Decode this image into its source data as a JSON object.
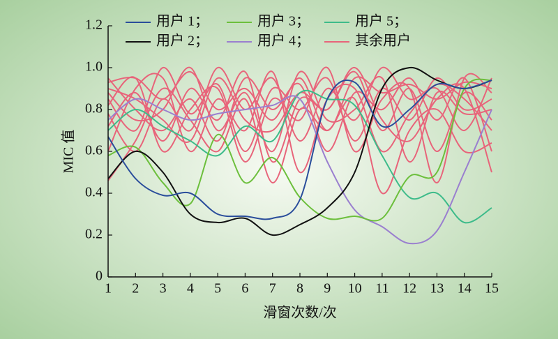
{
  "chart_data": {
    "type": "line",
    "xlabel": "滑窗次数/次",
    "ylabel": "MIC 值",
    "x": [
      1,
      2,
      3,
      4,
      5,
      6,
      7,
      8,
      9,
      10,
      11,
      12,
      13,
      14,
      15
    ],
    "xlim": [
      1,
      15
    ],
    "xticks": [
      1,
      2,
      3,
      4,
      5,
      6,
      7,
      8,
      9,
      10,
      11,
      12,
      13,
      14,
      15
    ],
    "ylim": [
      0,
      1.2
    ],
    "yticks": [
      0,
      0.2,
      0.4,
      0.6,
      0.8,
      {
        "value": 1,
        "label": "1.0"
      },
      1.2
    ],
    "series": [
      {
        "name": "用户 1；",
        "color": "#2a4d9b",
        "values": [
          0.67,
          0.47,
          0.39,
          0.4,
          0.3,
          0.29,
          0.28,
          0.37,
          0.85,
          0.93,
          0.72,
          0.8,
          0.92,
          0.9,
          0.94
        ]
      },
      {
        "name": "用户 2；",
        "color": "#111111",
        "values": [
          0.47,
          0.6,
          0.5,
          0.3,
          0.26,
          0.28,
          0.2,
          0.25,
          0.33,
          0.5,
          0.9,
          1.0,
          0.94,
          0.9,
          0.94
        ]
      },
      {
        "name": "用户 3；",
        "color": "#6cbf3c",
        "values": [
          0.58,
          0.62,
          0.45,
          0.35,
          0.68,
          0.45,
          0.57,
          0.38,
          0.28,
          0.29,
          0.28,
          0.48,
          0.5,
          0.9,
          0.94
        ]
      },
      {
        "name": "用户 4；",
        "color": "#9a7fcf",
        "values": [
          0.75,
          0.85,
          0.8,
          0.75,
          0.78,
          0.8,
          0.82,
          0.85,
          0.55,
          0.32,
          0.24,
          0.16,
          0.22,
          0.5,
          0.8
        ]
      },
      {
        "name": "用户 5；",
        "color": "#3dbb8a",
        "values": [
          0.7,
          0.8,
          0.72,
          0.65,
          0.58,
          0.72,
          0.65,
          0.88,
          0.85,
          0.82,
          0.58,
          0.38,
          0.4,
          0.26,
          0.33
        ]
      },
      {
        "name": "其余用户",
        "color": "#e8647a",
        "values": [
          [
            0.93,
            0.95,
            0.85,
            0.98,
            0.8,
            0.9,
            0.75,
            0.95,
            0.7,
            0.95,
            0.88,
            0.92,
            0.85,
            0.93,
            0.9
          ],
          [
            0.85,
            0.7,
            1.0,
            0.78,
            0.92,
            0.6,
            0.9,
            0.8,
            0.95,
            0.65,
            0.9,
            0.75,
            0.95,
            0.8,
            0.85
          ],
          [
            0.72,
            0.88,
            0.65,
            0.9,
            0.75,
            0.98,
            0.55,
            0.85,
            0.8,
            0.98,
            0.7,
            0.9,
            0.6,
            0.88,
            0.75
          ],
          [
            0.78,
            0.6,
            0.85,
            0.7,
            1.0,
            0.8,
            0.95,
            0.65,
            0.9,
            0.75,
            1.0,
            0.85,
            0.9,
            0.7,
            0.95
          ],
          [
            0.95,
            0.8,
            0.7,
            0.85,
            0.65,
            0.95,
            0.8,
            0.92,
            0.6,
            0.88,
            0.8,
            0.95,
            0.75,
            0.95,
            0.6
          ],
          [
            0.6,
            0.9,
            0.95,
            0.6,
            0.85,
            0.7,
            0.98,
            0.5,
            0.85,
            0.9,
            0.6,
            0.78,
            0.92,
            0.85,
            0.7
          ],
          [
            0.88,
            0.75,
            0.8,
            1.0,
            0.7,
            0.88,
            0.6,
            0.98,
            0.75,
            0.8,
            0.95,
            0.55,
            0.88,
            0.78,
            0.8
          ],
          [
            0.82,
            0.95,
            0.6,
            0.8,
            0.9,
            0.55,
            0.85,
            0.75,
            1.0,
            0.6,
            0.85,
            0.9,
            0.45,
            0.95,
            0.88
          ],
          [
            0.46,
            0.65,
            0.9,
            0.75,
            0.6,
            0.85,
            0.45,
            0.8,
            0.7,
            0.85,
            0.4,
            0.7,
            0.8,
            0.6,
            0.64
          ],
          [
            0.9,
            0.85,
            0.75,
            0.65,
            0.95,
            0.75,
            0.7,
            0.88,
            0.8,
            1.0,
            0.75,
            0.65,
            0.85,
            0.9,
            0.5
          ]
        ]
      }
    ]
  }
}
